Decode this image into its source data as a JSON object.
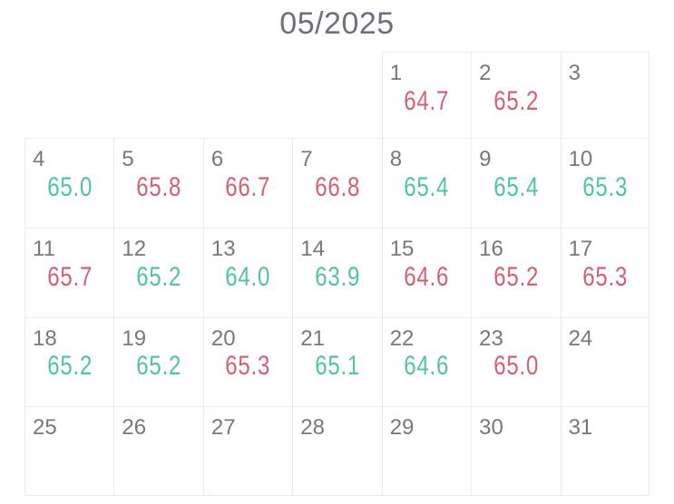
{
  "header": {
    "title": "05/2025"
  },
  "colors": {
    "green": "#4fc49f",
    "red": "#d55f6e",
    "day_number": "#75797e",
    "title": "#6c717a",
    "grid_border": "#ececec"
  },
  "calendar": {
    "columns": 7,
    "rows": 5,
    "cells": [
      {
        "day": null,
        "value": null,
        "value_color": null
      },
      {
        "day": null,
        "value": null,
        "value_color": null
      },
      {
        "day": null,
        "value": null,
        "value_color": null
      },
      {
        "day": null,
        "value": null,
        "value_color": null
      },
      {
        "day": "1",
        "value": "64.7",
        "value_color": "red"
      },
      {
        "day": "2",
        "value": "65.2",
        "value_color": "red"
      },
      {
        "day": "3",
        "value": null,
        "value_color": null
      },
      {
        "day": "4",
        "value": "65.0",
        "value_color": "green"
      },
      {
        "day": "5",
        "value": "65.8",
        "value_color": "red"
      },
      {
        "day": "6",
        "value": "66.7",
        "value_color": "red"
      },
      {
        "day": "7",
        "value": "66.8",
        "value_color": "red"
      },
      {
        "day": "8",
        "value": "65.4",
        "value_color": "green"
      },
      {
        "day": "9",
        "value": "65.4",
        "value_color": "green"
      },
      {
        "day": "10",
        "value": "65.3",
        "value_color": "green"
      },
      {
        "day": "11",
        "value": "65.7",
        "value_color": "red"
      },
      {
        "day": "12",
        "value": "65.2",
        "value_color": "green"
      },
      {
        "day": "13",
        "value": "64.0",
        "value_color": "green"
      },
      {
        "day": "14",
        "value": "63.9",
        "value_color": "green"
      },
      {
        "day": "15",
        "value": "64.6",
        "value_color": "red"
      },
      {
        "day": "16",
        "value": "65.2",
        "value_color": "red"
      },
      {
        "day": "17",
        "value": "65.3",
        "value_color": "red"
      },
      {
        "day": "18",
        "value": "65.2",
        "value_color": "green"
      },
      {
        "day": "19",
        "value": "65.2",
        "value_color": "green"
      },
      {
        "day": "20",
        "value": "65.3",
        "value_color": "red"
      },
      {
        "day": "21",
        "value": "65.1",
        "value_color": "green"
      },
      {
        "day": "22",
        "value": "64.6",
        "value_color": "green"
      },
      {
        "day": "23",
        "value": "65.0",
        "value_color": "red"
      },
      {
        "day": "24",
        "value": null,
        "value_color": null
      },
      {
        "day": "25",
        "value": null,
        "value_color": null
      },
      {
        "day": "26",
        "value": null,
        "value_color": null
      },
      {
        "day": "27",
        "value": null,
        "value_color": null
      },
      {
        "day": "28",
        "value": null,
        "value_color": null
      },
      {
        "day": "29",
        "value": null,
        "value_color": null
      },
      {
        "day": "30",
        "value": null,
        "value_color": null
      },
      {
        "day": "31",
        "value": null,
        "value_color": null
      }
    ]
  }
}
